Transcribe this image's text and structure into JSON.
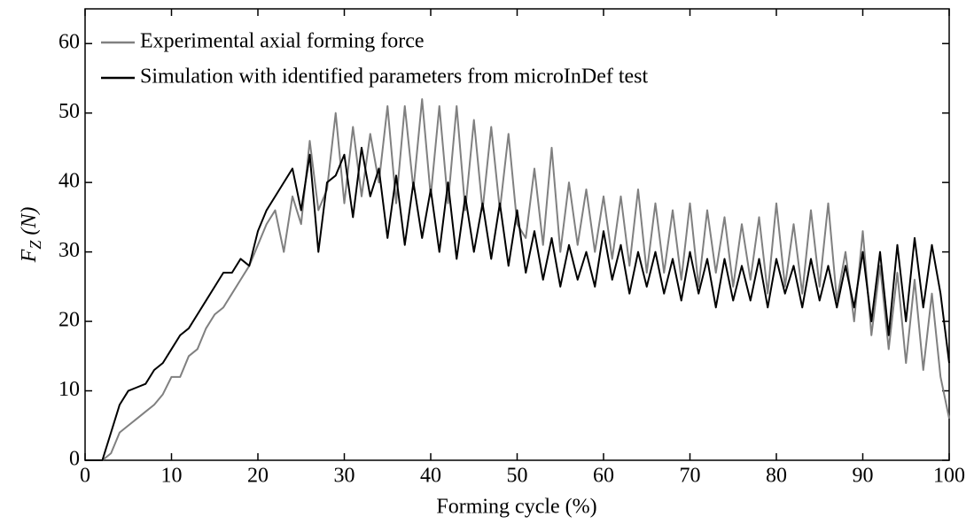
{
  "chart_data": {
    "type": "line",
    "xlabel": "Forming cycle (%)",
    "ylabel": [
      "F",
      "Z",
      "(N)"
    ],
    "x": [
      0,
      1,
      2,
      3,
      4,
      5,
      6,
      7,
      8,
      9,
      10,
      11,
      12,
      13,
      14,
      15,
      16,
      17,
      18,
      19,
      20,
      21,
      22,
      23,
      24,
      25,
      26,
      27,
      28,
      29,
      30,
      31,
      32,
      33,
      34,
      35,
      36,
      37,
      38,
      39,
      40,
      41,
      42,
      43,
      44,
      45,
      46,
      47,
      48,
      49,
      50,
      51,
      52,
      53,
      54,
      55,
      56,
      57,
      58,
      59,
      60,
      61,
      62,
      63,
      64,
      65,
      66,
      67,
      68,
      69,
      70,
      71,
      72,
      73,
      74,
      75,
      76,
      77,
      78,
      79,
      80,
      81,
      82,
      83,
      84,
      85,
      86,
      87,
      88,
      89,
      90,
      91,
      92,
      93,
      94,
      95,
      96,
      97,
      98,
      99,
      100
    ],
    "series": [
      {
        "name": "Experimental axial forming force",
        "color": "#808080",
        "values": [
          0,
          0,
          0,
          1,
          4,
          5,
          6,
          7,
          8,
          9.5,
          12,
          12,
          15,
          16,
          19,
          21,
          22,
          24,
          26,
          28,
          31,
          34,
          36,
          30,
          38,
          34,
          46,
          36,
          39,
          50,
          37,
          48,
          38,
          47,
          40,
          51,
          37,
          51,
          39,
          52,
          38,
          51,
          37,
          51,
          36,
          49,
          36,
          48,
          36,
          47,
          34,
          32,
          42,
          31,
          45,
          30,
          40,
          31,
          39,
          30,
          38,
          29,
          38,
          28,
          39,
          27,
          37,
          27,
          36,
          26,
          37,
          25,
          36,
          27,
          35,
          25,
          34,
          26,
          35,
          24,
          37,
          25,
          34,
          24,
          36,
          25,
          37,
          23,
          30,
          20,
          33,
          18,
          28,
          16,
          27,
          14,
          26,
          13,
          24,
          12,
          6
        ]
      },
      {
        "name": "Simulation with identified parameters from microInDef test",
        "color": "#000000",
        "values": [
          0,
          0,
          0,
          4,
          8,
          10,
          10.5,
          11,
          13,
          14,
          16,
          18,
          19,
          21,
          23,
          25,
          27,
          27,
          29,
          28,
          33,
          36,
          38,
          40,
          42,
          36,
          44,
          30,
          40,
          41,
          44,
          35,
          45,
          38,
          42,
          32,
          41,
          31,
          40,
          32,
          39,
          30,
          40,
          29,
          38,
          30,
          37,
          29,
          37,
          28,
          36,
          27,
          33,
          26,
          32,
          25,
          31,
          26,
          30,
          25,
          33,
          26,
          31,
          24,
          30,
          25,
          30,
          24,
          29,
          23,
          30,
          24,
          29,
          22,
          29,
          23,
          28,
          23,
          29,
          22,
          29,
          24,
          28,
          22,
          29,
          23,
          28,
          22,
          28,
          22,
          30,
          20,
          30,
          18,
          31,
          20,
          32,
          22,
          31,
          24,
          14
        ]
      }
    ],
    "xlim": [
      0,
      100
    ],
    "xticks": [
      0,
      10,
      20,
      30,
      40,
      50,
      60,
      70,
      80,
      90,
      100
    ],
    "ylim": [
      0,
      65
    ],
    "yticks": [
      0,
      10,
      20,
      30,
      40,
      50,
      60
    ],
    "legend": "upper left"
  }
}
